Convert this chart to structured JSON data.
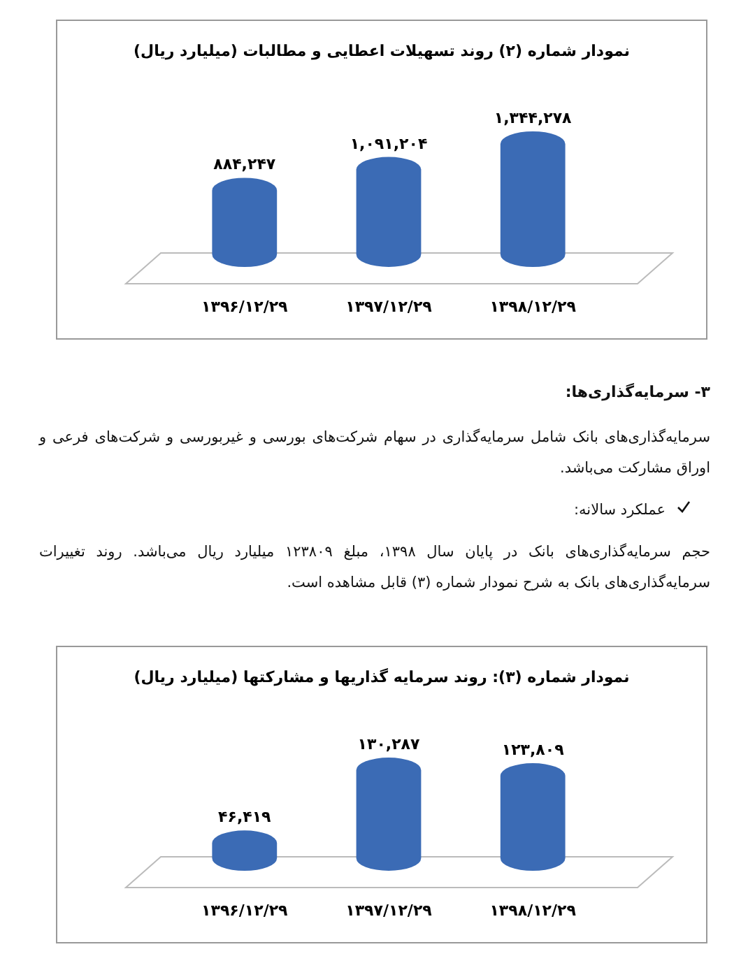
{
  "chart_data": [
    {
      "type": "bar",
      "title": "نمودار شماره (۲) روند تسهیلات اعطایی و مطالبات (میلیارد ریال)",
      "categories": [
        "۱۳۹۶/۱۲/۲۹",
        "۱۳۹۷/۱۲/۲۹",
        "۱۳۹۸/۱۲/۲۹"
      ],
      "values": [
        884247,
        1091204,
        1344278
      ],
      "value_labels": [
        "۸۸۴,۲۴۷",
        "۱,۰۹۱,۲۰۴",
        "۱,۳۴۴,۲۷۸"
      ],
      "color": "#3b6bb5"
    },
    {
      "type": "other",
      "title": "۳- سرمایه‌گذاری‌ها:",
      "annotations": [
        "سرمایه‌گذاری‌های بانک شامل سرمایه‌گذاری در سهام شرکت‌های بورسی و غیربورسی و شرکت‌های فرعی و اوراق مشارکت می‌باشد.",
        "عملکرد سالانه:",
        "حجم سرمایه‌گذاری‌های بانک در پایان سال ۱۳۹۸، مبلغ ۱۲۳۸۰۹ میلیارد ریال می‌باشد. روند تغییرات سرمایه‌گذاری‌های بانک به شرح نمودار شماره (۳) قابل مشاهده است."
      ]
    },
    {
      "type": "bar",
      "title": "نمودار شماره (۳): روند سرمایه گذاریها و مشارکتها (میلیارد ریال)",
      "categories": [
        "۱۳۹۶/۱۲/۲۹",
        "۱۳۹۷/۱۲/۲۹",
        "۱۳۹۸/۱۲/۲۹"
      ],
      "values": [
        46419,
        130287,
        123809
      ],
      "value_labels": [
        "۴۶,۴۱۹",
        "۱۳۰,۲۸۷",
        "۱۲۳,۸۰۹"
      ],
      "color": "#3b6bb5"
    }
  ]
}
